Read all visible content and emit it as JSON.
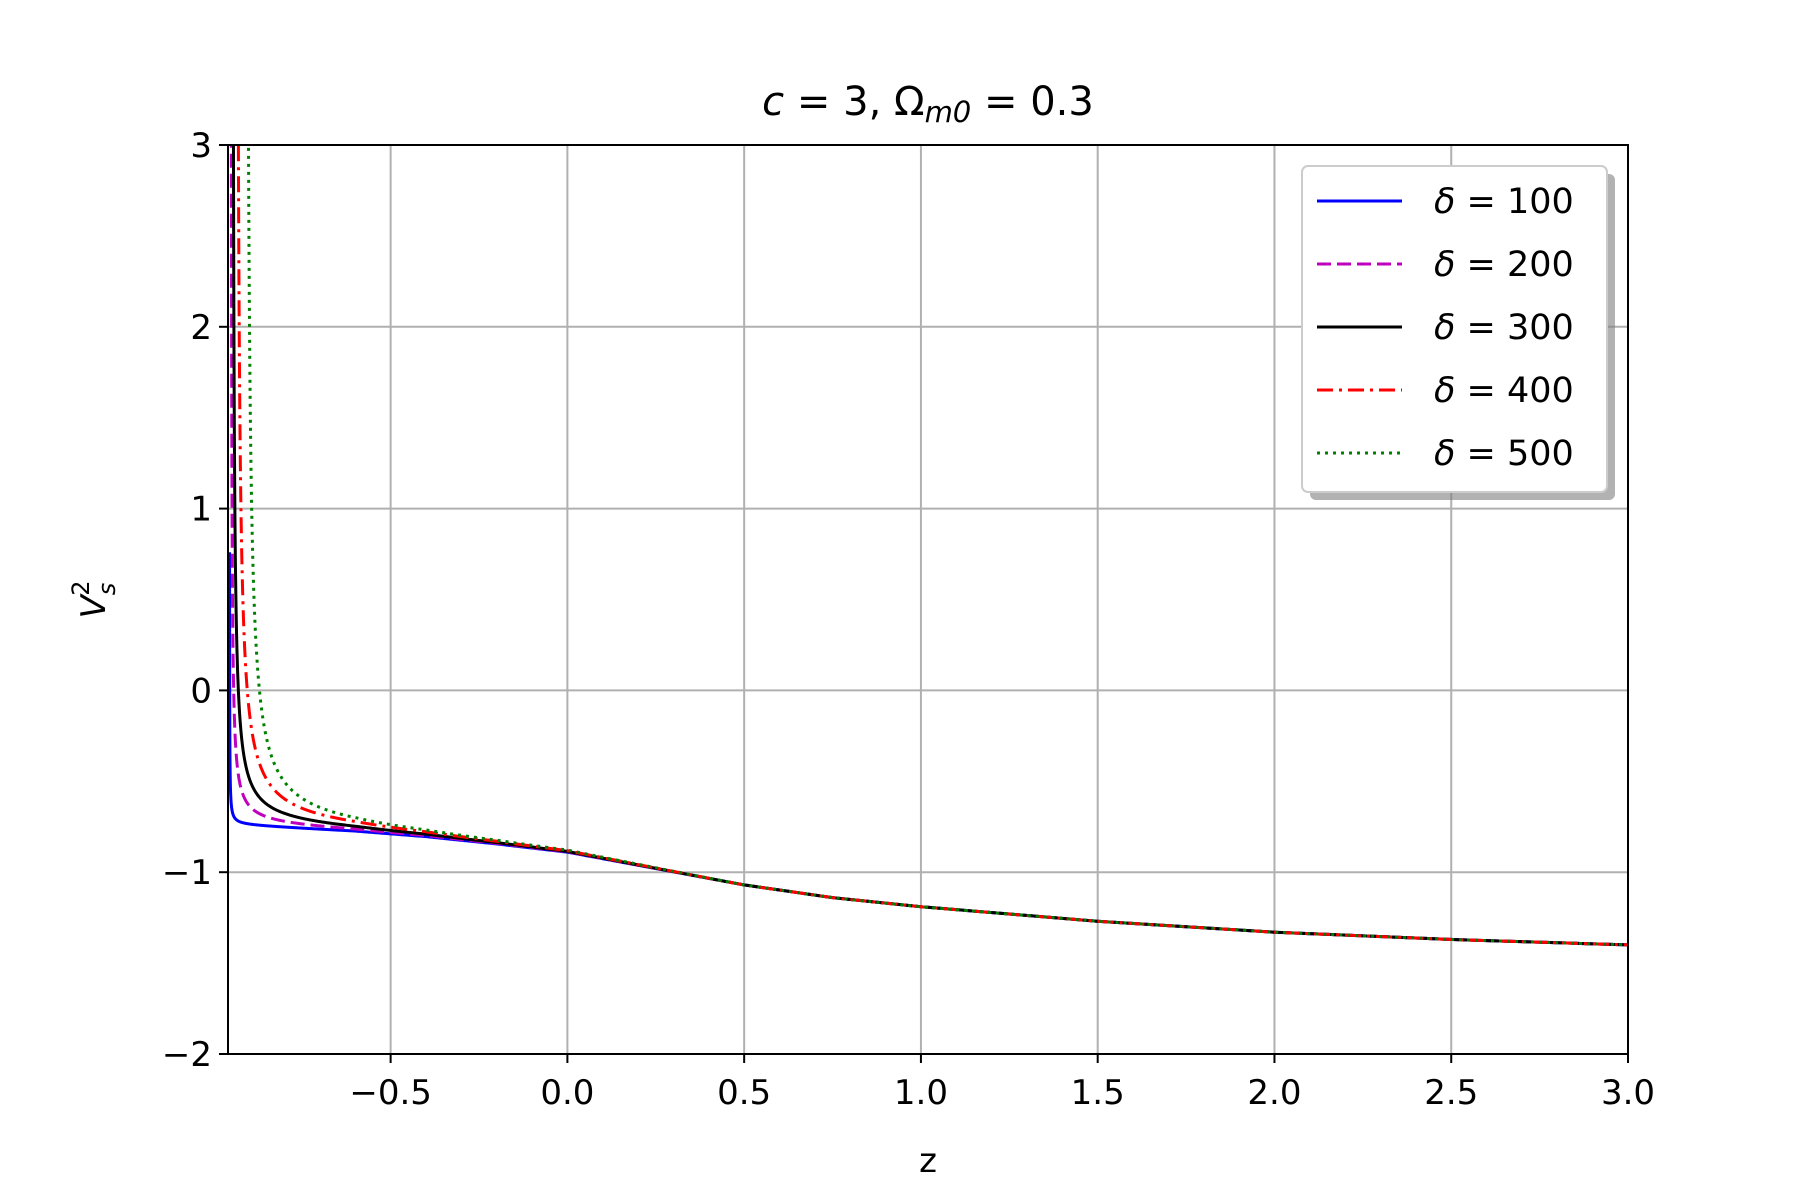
{
  "chart_data": {
    "type": "line",
    "title_parts": [
      {
        "t": "c",
        "i": true
      },
      {
        "t": " = 3, Ω",
        "i": false
      },
      {
        "t": "m0",
        "i": true,
        "sub": true
      },
      {
        "t": " = 0.3",
        "i": false
      }
    ],
    "xlabel": "z",
    "ylabel_base": "V",
    "ylabel_sub": "s",
    "ylabel_sup": "2",
    "xlim": [
      -0.96,
      3.0
    ],
    "ylim": [
      -2,
      3
    ],
    "xticks": [
      -0.5,
      0.0,
      0.5,
      1.0,
      1.5,
      2.0,
      2.5,
      3.0
    ],
    "xtick_labels": [
      "−0.5",
      "0.0",
      "0.5",
      "1.0",
      "1.5",
      "2.0",
      "2.5",
      "3.0"
    ],
    "yticks": [
      -2,
      -1,
      0,
      1,
      2,
      3
    ],
    "ytick_labels": [
      "−2",
      "−1",
      "0",
      "1",
      "2",
      "3"
    ],
    "grid": true,
    "legend_position": "top-right",
    "series": [
      {
        "name": "δ = 100",
        "color": "#0000ff",
        "dash": "solid",
        "pole": -0.956,
        "amp": 0.0006,
        "legend_value": "100"
      },
      {
        "name": "δ = 200",
        "color": "#bf00bf",
        "dash": "dashed",
        "pole": -0.952,
        "amp": 0.006,
        "legend_value": "200"
      },
      {
        "name": "δ = 300",
        "color": "#000000",
        "dash": "solid",
        "pole": -0.948,
        "amp": 0.013,
        "legend_value": "300"
      },
      {
        "name": "δ = 400",
        "color": "#ff0000",
        "dash": "dashdot",
        "pole": -0.937,
        "amp": 0.024,
        "legend_value": "400"
      },
      {
        "name": "δ = 500",
        "color": "#008000",
        "dash": "dotted",
        "pole": -0.91,
        "amp": 0.03,
        "legend_value": "500"
      }
    ],
    "baseline": {
      "x": [
        -0.95,
        -0.9,
        -0.8,
        -0.6,
        -0.4,
        -0.2,
        0.0,
        0.25,
        0.5,
        0.75,
        1.0,
        1.5,
        2.0,
        2.5,
        3.0
      ],
      "y": [
        -0.74,
        -0.745,
        -0.755,
        -0.775,
        -0.805,
        -0.845,
        -0.89,
        -0.98,
        -1.07,
        -1.14,
        -1.19,
        -1.27,
        -1.33,
        -1.37,
        -1.4
      ]
    }
  }
}
